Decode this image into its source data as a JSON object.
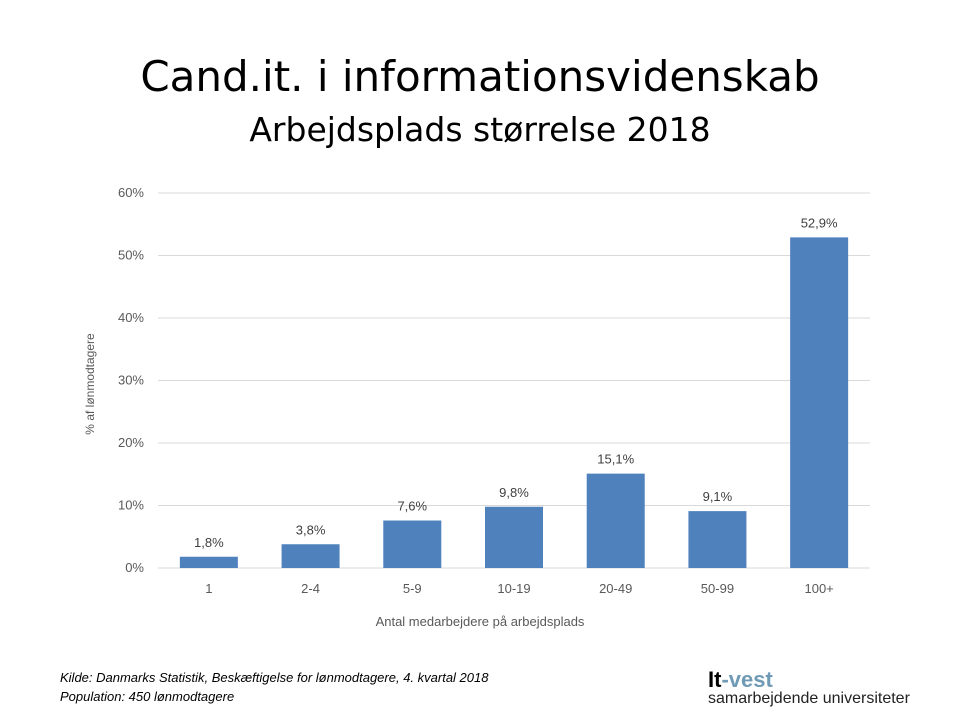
{
  "chart_data": {
    "type": "bar",
    "title": "Cand.it. i informationsvidenskab",
    "subtitle": "Arbejdsplads størrelse 2018",
    "xlabel": "Antal medarbejdere på arbejdsplads",
    "ylabel": "% af lønmodtagere",
    "categories": [
      "1",
      "2-4",
      "5-9",
      "10-19",
      "20-49",
      "50-99",
      "100+"
    ],
    "values": [
      1.8,
      3.8,
      7.6,
      9.8,
      15.1,
      9.1,
      52.9
    ],
    "data_labels": [
      "1,8%",
      "3,8%",
      "7,6%",
      "9,8%",
      "15,1%",
      "9,1%",
      "52,9%"
    ],
    "ylim": [
      0,
      60
    ],
    "yticks": [
      "0%",
      "10%",
      "20%",
      "30%",
      "40%",
      "50%",
      "60%"
    ],
    "grid": true,
    "bar_color": "#4f81bd"
  },
  "footer": {
    "source": "Kilde: Danmarks Statistik, Beskæftigelse for lønmodtagere, 4. kvartal 2018",
    "population": "Population: 450 lønmodtagere"
  },
  "logo": {
    "part1": "It",
    "part2": "-vest",
    "tagline": "samarbejdende universiteter",
    "accent": "#6e9ab5"
  }
}
